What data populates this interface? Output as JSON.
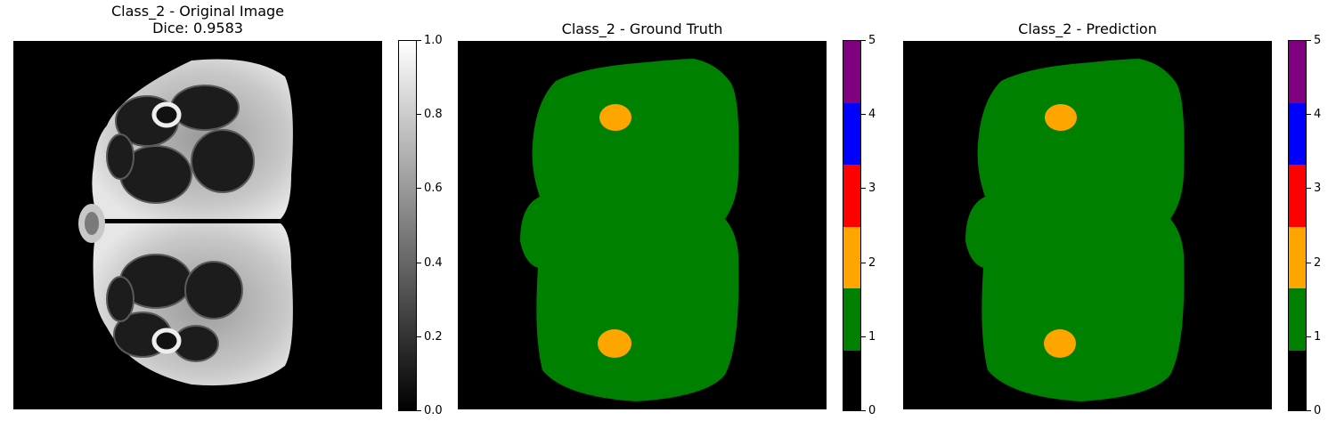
{
  "panels": [
    {
      "title": "Class_2 - Original Image",
      "subtitle": "Dice: 0.9583"
    },
    {
      "title": "Class_2 - Ground Truth"
    },
    {
      "title": "Class_2 - Prediction"
    }
  ],
  "gray_colorbar": {
    "ticks": [
      "0.0",
      "0.2",
      "0.4",
      "0.6",
      "0.8",
      "1.0"
    ],
    "range": [
      0.0,
      1.0
    ]
  },
  "label_colorbar": {
    "ticks": [
      "0",
      "1",
      "2",
      "3",
      "4",
      "5"
    ],
    "colors": [
      "#000000",
      "#008000",
      "#ffa500",
      "#ff0000",
      "#0000ff",
      "#800080"
    ]
  }
}
